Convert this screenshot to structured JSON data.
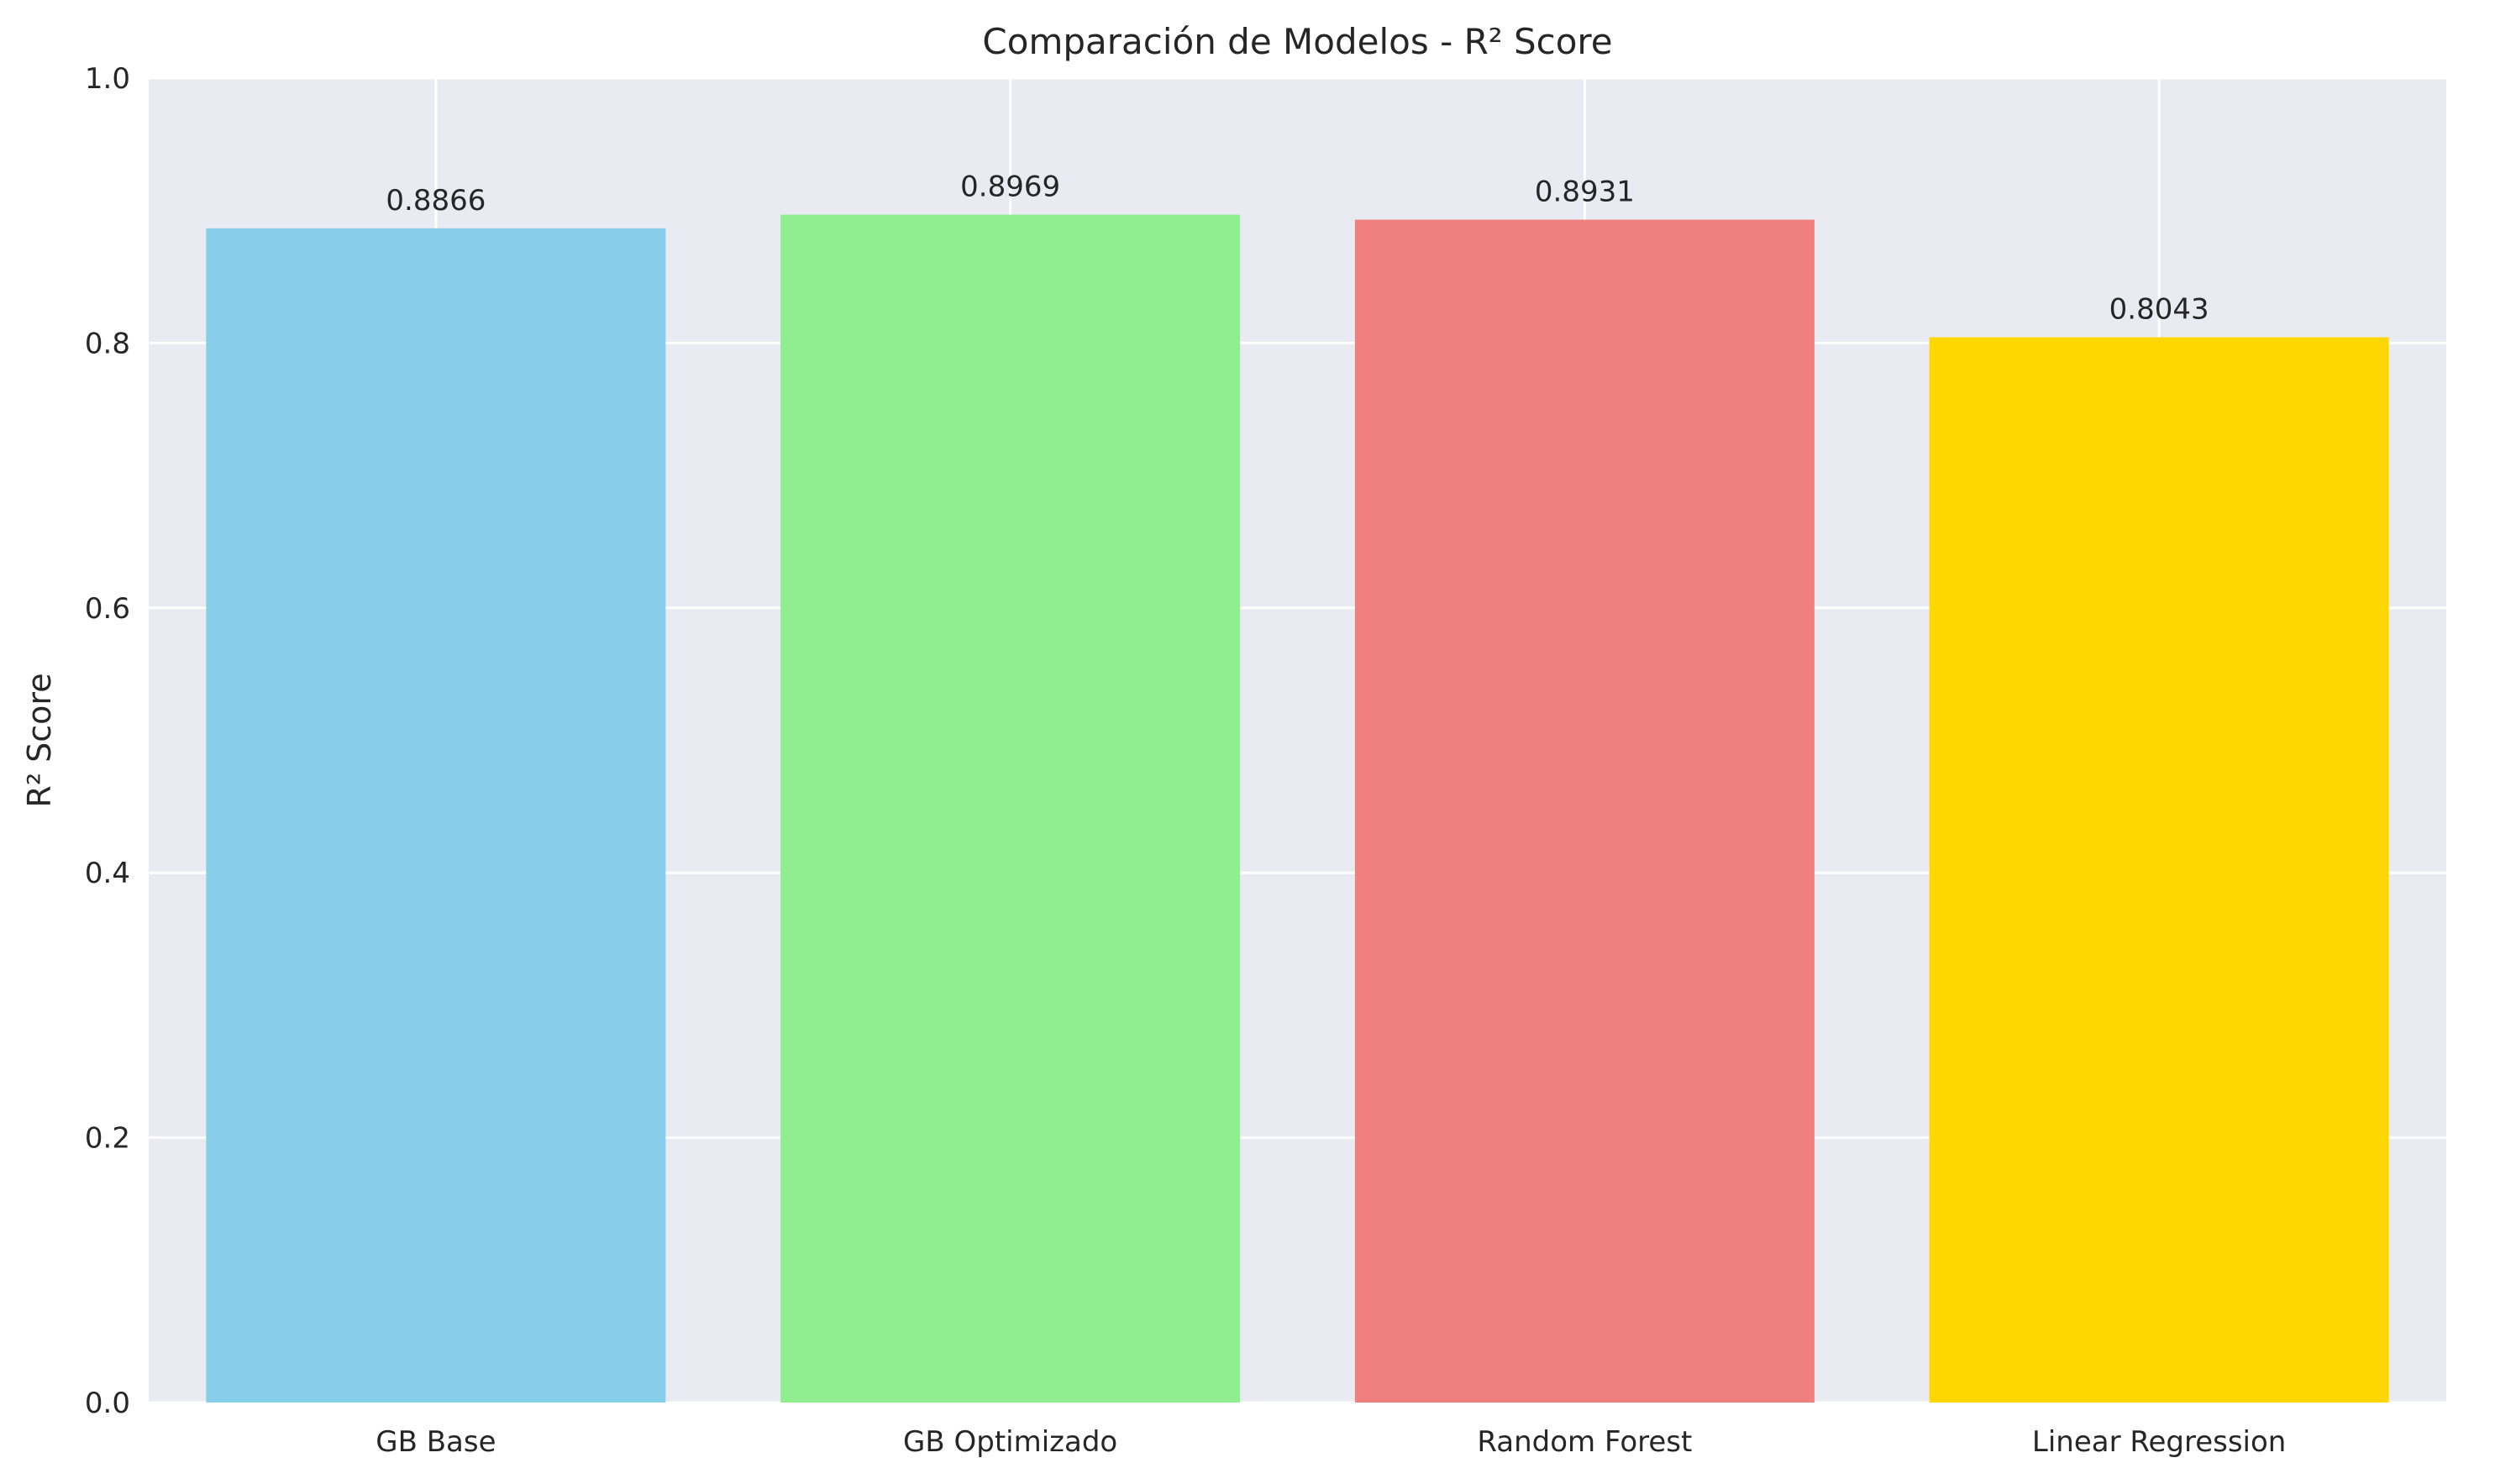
{
  "chart_data": {
    "type": "bar",
    "title": "Comparación de Modelos - R² Score",
    "xlabel": "",
    "ylabel": "R² Score",
    "categories": [
      "GB Base",
      "GB Optimizado",
      "Random Forest",
      "Linear Regression"
    ],
    "values": [
      0.8866,
      0.8969,
      0.8931,
      0.8043
    ],
    "value_labels": [
      "0.8866",
      "0.8969",
      "0.8931",
      "0.8043"
    ],
    "colors": [
      "#87CEEB",
      "#90EE90",
      "#F08080",
      "#FFD700"
    ],
    "ylim": [
      0,
      1.0
    ],
    "yticks": [
      0.0,
      0.2,
      0.4,
      0.6,
      0.8,
      1.0
    ],
    "ytick_labels": [
      "0.0",
      "0.2",
      "0.4",
      "0.6",
      "0.8",
      "1.0"
    ],
    "grid": true,
    "legend": "none",
    "background_color": "#EAEAF2",
    "grid_color": "#FFFFFF"
  }
}
